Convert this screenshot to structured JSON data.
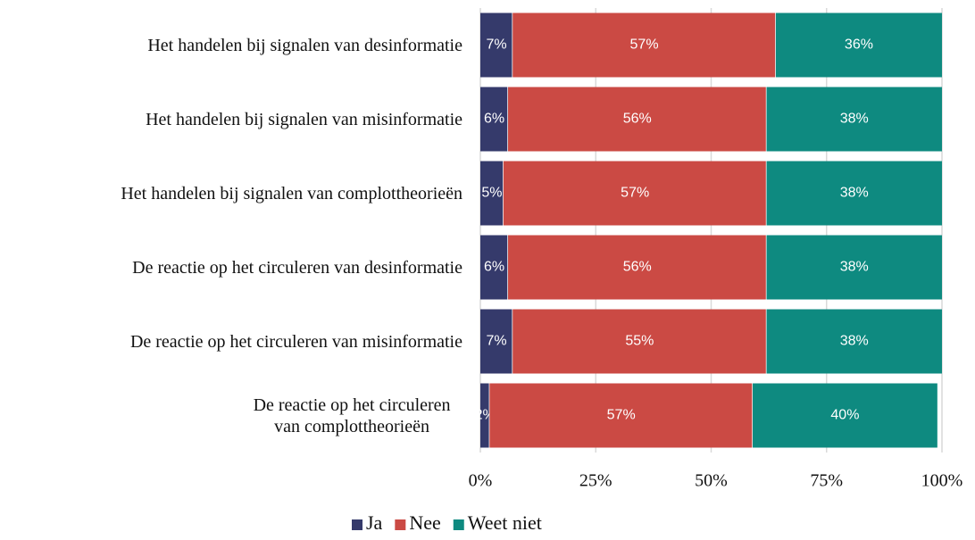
{
  "chart_data": {
    "type": "bar",
    "orientation": "horizontal",
    "stacked": true,
    "categories": [
      "Het handelen bij signalen van desinformatie",
      "Het handelen bij signalen van misinformatie",
      "Het handelen bij signalen van complottheorieën",
      "De reactie op het circuleren van desinformatie",
      "De reactie op het circuleren van misinformatie",
      "De reactie op het circuleren van complottheorieën"
    ],
    "series": [
      {
        "name": "Ja",
        "color": "#353a6b",
        "values": [
          7,
          6,
          5,
          6,
          7,
          2
        ],
        "value_labels": [
          "7%",
          "6%",
          "5%",
          "6%",
          "7%",
          "2%"
        ]
      },
      {
        "name": "Nee",
        "color": "#cb4a44",
        "values": [
          57,
          56,
          57,
          56,
          55,
          57
        ],
        "value_labels": [
          "57%",
          "56%",
          "57%",
          "56%",
          "55%",
          "57%"
        ]
      },
      {
        "name": "Weet niet",
        "color": "#0e8a80",
        "values": [
          36,
          38,
          38,
          38,
          38,
          40
        ],
        "value_labels": [
          "36%",
          "38%",
          "38%",
          "38%",
          "38%",
          "40%"
        ]
      }
    ],
    "xlim": [
      0,
      100
    ],
    "xticks": [
      {
        "value": 0,
        "label": "0%"
      },
      {
        "value": 25,
        "label": "25%"
      },
      {
        "value": 50,
        "label": "50%"
      },
      {
        "value": 75,
        "label": "75%"
      },
      {
        "value": 100,
        "label": "100%"
      }
    ],
    "grid": true,
    "legend": "bottom"
  }
}
